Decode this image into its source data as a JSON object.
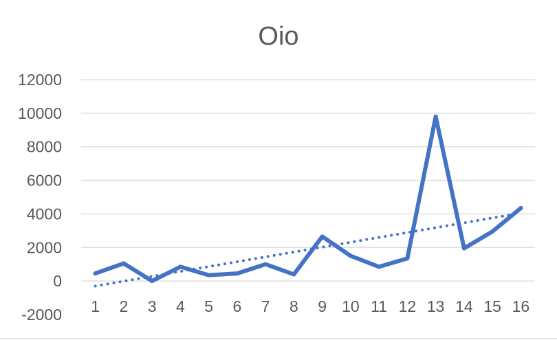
{
  "chart_data": {
    "type": "line",
    "title": "Oio",
    "xlabel": "",
    "ylabel": "",
    "categories": [
      "1",
      "2",
      "3",
      "4",
      "5",
      "6",
      "7",
      "8",
      "9",
      "10",
      "11",
      "12",
      "13",
      "14",
      "15",
      "16"
    ],
    "series": [
      {
        "values": [
          450,
          1050,
          0,
          850,
          350,
          450,
          1000,
          400,
          2650,
          1500,
          850,
          1350,
          9800,
          1950,
          2950,
          4350
        ],
        "color": "#4472c4"
      }
    ],
    "trendline": {
      "kind": "linear",
      "style": "dotted",
      "color": "#4472c4",
      "start": -300,
      "end": 4050
    },
    "ylim": [
      -2000,
      12000
    ],
    "yticks": [
      -2000,
      0,
      2000,
      4000,
      6000,
      8000,
      10000,
      12000
    ],
    "grid": true,
    "legend": "none"
  }
}
